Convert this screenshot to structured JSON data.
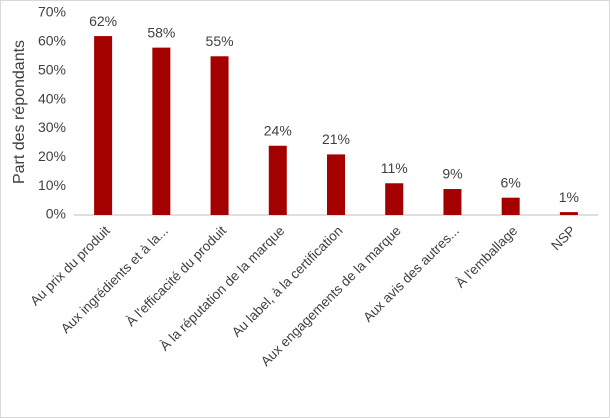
{
  "chart_data": {
    "type": "bar",
    "y_axis_label": "Part des répondants",
    "categories": [
      "Au prix du produit",
      "Aux ingrédients et à la...",
      "À l'efficacité du produit",
      "À la réputation de la marque",
      "Au label, à la certification",
      "Aux engagements de la marque",
      "Aux avis des autres...",
      "À l'emballage",
      "NSP"
    ],
    "values": [
      62,
      58,
      55,
      24,
      21,
      11,
      9,
      6,
      1
    ],
    "value_labels": [
      "62%",
      "58%",
      "55%",
      "24%",
      "21%",
      "11%",
      "9%",
      "6%",
      "1%"
    ],
    "color": "#a50000",
    "ylim": [
      0,
      70
    ],
    "yticks": [
      {
        "value": 0,
        "label": "0%"
      },
      {
        "value": 10,
        "label": "10%"
      },
      {
        "value": 20,
        "label": "20%"
      },
      {
        "value": 30,
        "label": "30%"
      },
      {
        "value": 40,
        "label": "40%"
      },
      {
        "value": 50,
        "label": "50%"
      },
      {
        "value": 60,
        "label": "60%"
      },
      {
        "value": 70,
        "label": "70%"
      }
    ],
    "grid": false
  }
}
